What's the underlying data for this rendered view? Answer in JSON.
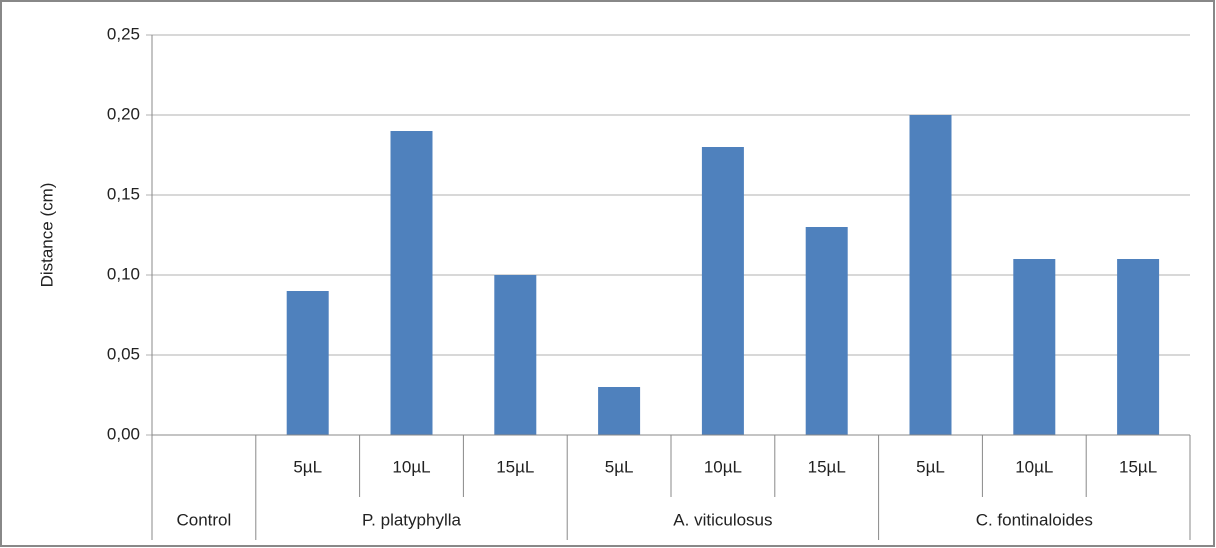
{
  "chart_data": {
    "type": "bar",
    "y_label": "Distance (cm)",
    "groups": [
      {
        "name": "Control",
        "categories": [
          null
        ]
      },
      {
        "name": "P. platyphylla",
        "categories": [
          "5µL",
          "10µL",
          "15µL"
        ]
      },
      {
        "name": "A. viticulosus",
        "categories": [
          "5µL",
          "10µL",
          "15µL"
        ]
      },
      {
        "name": "C. fontinaloides",
        "categories": [
          "5µL",
          "10µL",
          "15µL"
        ]
      }
    ],
    "values": [
      0,
      0.09,
      0.19,
      0.1,
      0.03,
      0.18,
      0.13,
      0.2,
      0.11,
      0.11
    ],
    "color": "#4f81bd",
    "ylim": [
      0,
      0.25
    ],
    "yticks": [
      {
        "value": 0,
        "label": "0,00"
      },
      {
        "value": 0.05,
        "label": "0,05"
      },
      {
        "value": 0.1,
        "label": "0,10"
      },
      {
        "value": 0.15,
        "label": "0,15"
      },
      {
        "value": 0.2,
        "label": "0,20"
      },
      {
        "value": 0.25,
        "label": "0,25"
      }
    ],
    "grid": true
  }
}
